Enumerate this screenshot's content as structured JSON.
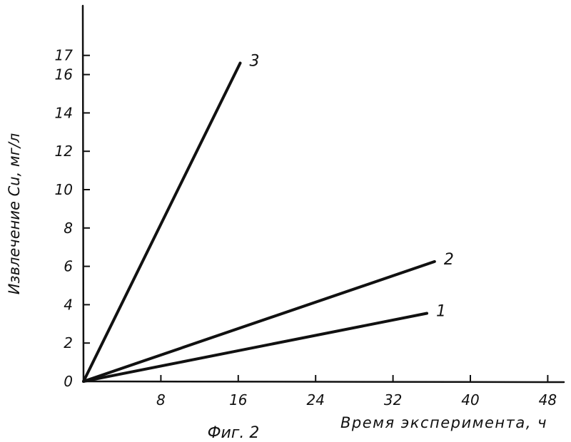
{
  "chart_data": {
    "type": "line",
    "title": "",
    "caption": "Фиг. 2",
    "xlabel": "Время эксперимента, ч",
    "ylabel": "Извлечение Cu, мг/л",
    "xlim": [
      0,
      48
    ],
    "ylim": [
      0,
      17
    ],
    "x_ticks": [
      8,
      16,
      24,
      32,
      40,
      48
    ],
    "x_tick_labels": [
      "8",
      "16",
      "24",
      "32",
      "40",
      "48"
    ],
    "y_ticks": [
      0,
      2,
      4,
      6,
      8,
      10,
      12,
      14,
      16,
      17
    ],
    "y_tick_labels": [
      "0",
      "2",
      "4",
      "6",
      "8",
      "10",
      "12",
      "14",
      "16",
      "17"
    ],
    "grid": false,
    "line_color": "#111111",
    "series": [
      {
        "label": "1",
        "x": [
          0,
          35.5
        ],
        "y": [
          0,
          3.55
        ]
      },
      {
        "label": "2",
        "x": [
          0,
          36.3
        ],
        "y": [
          0,
          6.25
        ]
      },
      {
        "label": "3",
        "x": [
          0,
          16.2
        ],
        "y": [
          0,
          16.6
        ]
      }
    ]
  }
}
